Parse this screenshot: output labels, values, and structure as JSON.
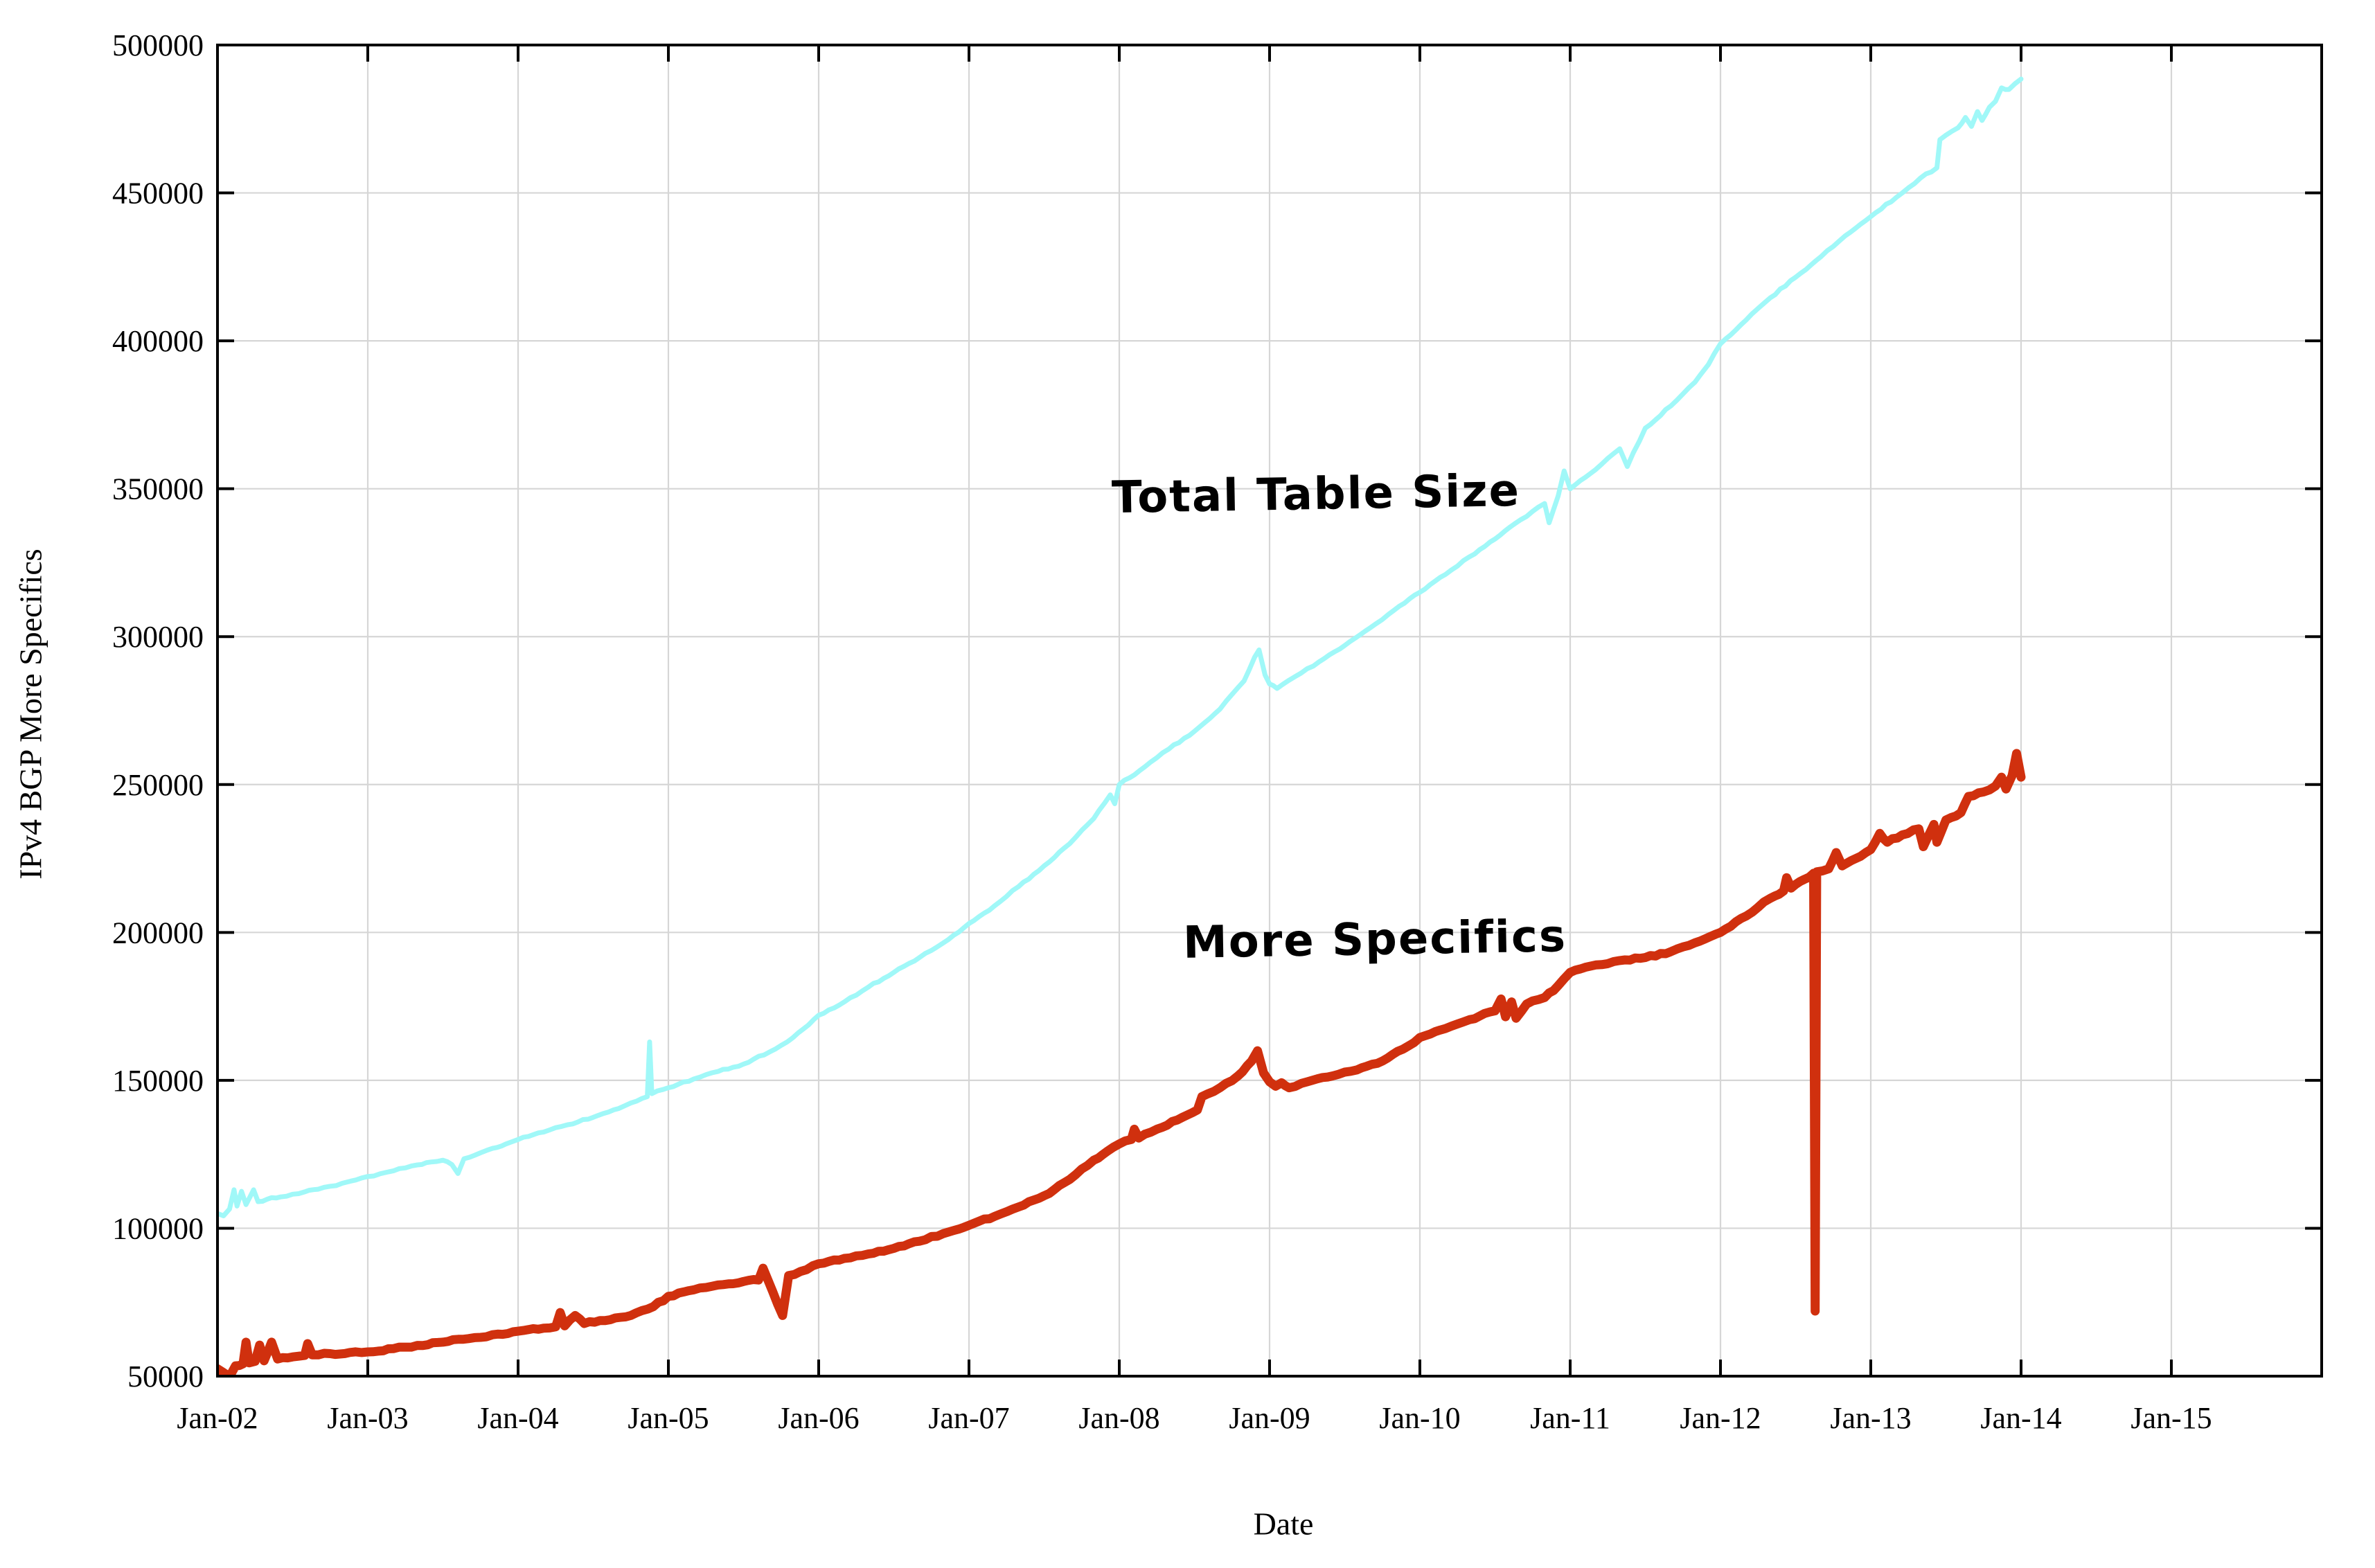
{
  "chart_data": {
    "type": "line",
    "title": "",
    "xlabel": "Date",
    "ylabel": "IPv4 BGP More Specifics",
    "grid": true,
    "legend_position": "none",
    "xlim_years": [
      2002,
      2016
    ],
    "ylim": [
      50000,
      500000
    ],
    "x_ticks": [
      {
        "year": 2002,
        "label": "Jan-02"
      },
      {
        "year": 2003,
        "label": "Jan-03"
      },
      {
        "year": 2004,
        "label": "Jan-04"
      },
      {
        "year": 2005,
        "label": "Jan-05"
      },
      {
        "year": 2006,
        "label": "Jan-06"
      },
      {
        "year": 2007,
        "label": "Jan-07"
      },
      {
        "year": 2008,
        "label": "Jan-08"
      },
      {
        "year": 2009,
        "label": "Jan-09"
      },
      {
        "year": 2010,
        "label": "Jan-10"
      },
      {
        "year": 2011,
        "label": "Jan-11"
      },
      {
        "year": 2012,
        "label": "Jan-12"
      },
      {
        "year": 2013,
        "label": "Jan-13"
      },
      {
        "year": 2014,
        "label": "Jan-14"
      },
      {
        "year": 2015,
        "label": "Jan-15"
      }
    ],
    "y_ticks": [
      {
        "value": 50000,
        "label": "50000"
      },
      {
        "value": 100000,
        "label": "100000"
      },
      {
        "value": 150000,
        "label": "150000"
      },
      {
        "value": 200000,
        "label": "200000"
      },
      {
        "value": 250000,
        "label": "250000"
      },
      {
        "value": 300000,
        "label": "300000"
      },
      {
        "value": 350000,
        "label": "350000"
      },
      {
        "value": 400000,
        "label": "400000"
      },
      {
        "value": 450000,
        "label": "450000"
      },
      {
        "value": 500000,
        "label": "500000"
      }
    ],
    "colors": {
      "total_table": "#a0f8f8",
      "more_specifics": "#d0300e",
      "grid": "#d6d6d6",
      "axis": "#000000"
    },
    "annotations": [
      {
        "text": "Total Table Size",
        "x_year": 2009.31,
        "y_value": 348000
      },
      {
        "text": "More Specifics",
        "x_year": 2009.7,
        "y_value": 197500
      }
    ],
    "series": [
      {
        "name": "Total Table Size",
        "color": "#a0f8f8",
        "width": 7,
        "jitter": 600,
        "points": [
          [
            2002.0,
            105000
          ],
          [
            2002.04,
            104200
          ],
          [
            2002.08,
            106500
          ],
          [
            2002.11,
            113000
          ],
          [
            2002.13,
            107500
          ],
          [
            2002.16,
            112500
          ],
          [
            2002.19,
            108000
          ],
          [
            2002.24,
            113000
          ],
          [
            2002.27,
            109000
          ],
          [
            2002.33,
            109800
          ],
          [
            2002.42,
            110600
          ],
          [
            2002.5,
            111500
          ],
          [
            2002.58,
            112300
          ],
          [
            2002.67,
            113200
          ],
          [
            2002.75,
            114200
          ],
          [
            2002.83,
            115200
          ],
          [
            2002.92,
            116300
          ],
          [
            2003.0,
            117500
          ],
          [
            2003.08,
            118400
          ],
          [
            2003.17,
            119400
          ],
          [
            2003.25,
            120400
          ],
          [
            2003.33,
            121400
          ],
          [
            2003.42,
            122400
          ],
          [
            2003.5,
            123000
          ],
          [
            2003.56,
            121500
          ],
          [
            2003.6,
            118500
          ],
          [
            2003.64,
            123500
          ],
          [
            2003.75,
            125500
          ],
          [
            2003.83,
            127000
          ],
          [
            2003.92,
            128500
          ],
          [
            2004.0,
            130000
          ],
          [
            2004.17,
            132500
          ],
          [
            2004.33,
            135000
          ],
          [
            2004.5,
            137500
          ],
          [
            2004.67,
            140500
          ],
          [
            2004.79,
            143000
          ],
          [
            2004.86,
            144500
          ],
          [
            2004.875,
            163000
          ],
          [
            2004.89,
            145500
          ],
          [
            2005.0,
            147500
          ],
          [
            2005.17,
            150500
          ],
          [
            2005.33,
            153000
          ],
          [
            2005.5,
            155500
          ],
          [
            2005.67,
            159500
          ],
          [
            2005.83,
            164500
          ],
          [
            2006.0,
            172000
          ],
          [
            2006.17,
            176500
          ],
          [
            2006.33,
            181500
          ],
          [
            2006.5,
            186500
          ],
          [
            2006.67,
            191500
          ],
          [
            2006.83,
            196500
          ],
          [
            2007.0,
            203000
          ],
          [
            2007.17,
            209000
          ],
          [
            2007.33,
            215500
          ],
          [
            2007.5,
            222500
          ],
          [
            2007.67,
            230000
          ],
          [
            2007.83,
            238500
          ],
          [
            2007.94,
            246500
          ],
          [
            2007.97,
            243500
          ],
          [
            2008.0,
            250000
          ],
          [
            2008.17,
            256000
          ],
          [
            2008.33,
            262000
          ],
          [
            2008.5,
            268000
          ],
          [
            2008.67,
            275500
          ],
          [
            2008.83,
            285000
          ],
          [
            2008.9,
            293000
          ],
          [
            2008.93,
            295500
          ],
          [
            2008.97,
            287000
          ],
          [
            2009.0,
            284000
          ],
          [
            2009.05,
            282500
          ],
          [
            2009.17,
            286500
          ],
          [
            2009.33,
            291500
          ],
          [
            2009.5,
            297000
          ],
          [
            2009.67,
            303000
          ],
          [
            2009.83,
            309000
          ],
          [
            2010.0,
            315000
          ],
          [
            2010.17,
            321000
          ],
          [
            2010.33,
            327000
          ],
          [
            2010.5,
            333000
          ],
          [
            2010.67,
            339500
          ],
          [
            2010.83,
            345000
          ],
          [
            2010.86,
            338500
          ],
          [
            2010.92,
            347500
          ],
          [
            2010.96,
            356000
          ],
          [
            2011.0,
            350000
          ],
          [
            2011.17,
            356500
          ],
          [
            2011.33,
            363500
          ],
          [
            2011.38,
            357500
          ],
          [
            2011.5,
            370500
          ],
          [
            2011.67,
            378000
          ],
          [
            2011.83,
            386000
          ],
          [
            2011.92,
            392000
          ],
          [
            2012.0,
            399000
          ],
          [
            2012.17,
            407000
          ],
          [
            2012.33,
            414500
          ],
          [
            2012.5,
            421500
          ],
          [
            2012.67,
            428500
          ],
          [
            2012.83,
            435500
          ],
          [
            2013.0,
            442000
          ],
          [
            2013.17,
            448500
          ],
          [
            2013.33,
            455000
          ],
          [
            2013.44,
            458500
          ],
          [
            2013.46,
            468000
          ],
          [
            2013.58,
            472000
          ],
          [
            2013.63,
            475500
          ],
          [
            2013.67,
            472500
          ],
          [
            2013.71,
            477500
          ],
          [
            2013.74,
            474500
          ],
          [
            2013.79,
            479000
          ],
          [
            2013.83,
            481000
          ],
          [
            2013.87,
            485500
          ],
          [
            2013.92,
            485000
          ],
          [
            2014.0,
            488500
          ]
        ]
      },
      {
        "name": "More Specifics",
        "color": "#d0300e",
        "width": 13,
        "jitter": 700,
        "points": [
          [
            2002.0,
            52500
          ],
          [
            2002.04,
            51200
          ],
          [
            2002.08,
            49800
          ],
          [
            2002.12,
            53500
          ],
          [
            2002.17,
            54200
          ],
          [
            2002.19,
            61500
          ],
          [
            2002.21,
            54500
          ],
          [
            2002.25,
            55000
          ],
          [
            2002.28,
            60500
          ],
          [
            2002.31,
            55200
          ],
          [
            2002.36,
            61500
          ],
          [
            2002.4,
            55800
          ],
          [
            2002.5,
            56500
          ],
          [
            2002.58,
            57000
          ],
          [
            2002.6,
            61000
          ],
          [
            2002.63,
            57200
          ],
          [
            2002.75,
            57600
          ],
          [
            2002.88,
            58000
          ],
          [
            2003.0,
            58200
          ],
          [
            2003.17,
            59300
          ],
          [
            2003.33,
            60400
          ],
          [
            2003.5,
            61500
          ],
          [
            2003.67,
            62700
          ],
          [
            2003.83,
            64000
          ],
          [
            2004.0,
            65200
          ],
          [
            2004.17,
            66200
          ],
          [
            2004.25,
            66700
          ],
          [
            2004.28,
            71500
          ],
          [
            2004.31,
            67000
          ],
          [
            2004.38,
            70500
          ],
          [
            2004.44,
            67800
          ],
          [
            2004.58,
            68800
          ],
          [
            2004.75,
            70500
          ],
          [
            2004.9,
            73500
          ],
          [
            2005.0,
            77000
          ],
          [
            2005.17,
            79200
          ],
          [
            2005.33,
            80800
          ],
          [
            2005.5,
            82000
          ],
          [
            2005.6,
            82500
          ],
          [
            2005.63,
            86500
          ],
          [
            2005.66,
            82800
          ],
          [
            2005.76,
            70500
          ],
          [
            2005.8,
            84000
          ],
          [
            2005.92,
            86000
          ],
          [
            2006.0,
            88000
          ],
          [
            2006.17,
            89800
          ],
          [
            2006.33,
            91300
          ],
          [
            2006.5,
            93200
          ],
          [
            2006.67,
            95600
          ],
          [
            2006.83,
            98200
          ],
          [
            2007.0,
            101000
          ],
          [
            2007.17,
            104000
          ],
          [
            2007.33,
            107200
          ],
          [
            2007.5,
            111000
          ],
          [
            2007.67,
            116500
          ],
          [
            2007.83,
            123000
          ],
          [
            2007.92,
            126000
          ],
          [
            2008.0,
            128500
          ],
          [
            2008.08,
            130000
          ],
          [
            2008.1,
            133500
          ],
          [
            2008.13,
            130500
          ],
          [
            2008.25,
            133500
          ],
          [
            2008.42,
            137500
          ],
          [
            2008.52,
            140000
          ],
          [
            2008.55,
            144500
          ],
          [
            2008.67,
            147500
          ],
          [
            2008.79,
            151500
          ],
          [
            2008.88,
            156500
          ],
          [
            2008.92,
            160000
          ],
          [
            2008.96,
            152500
          ],
          [
            2009.0,
            149500
          ],
          [
            2009.04,
            148000
          ],
          [
            2009.08,
            149200
          ],
          [
            2009.13,
            147500
          ],
          [
            2009.25,
            149500
          ],
          [
            2009.42,
            151500
          ],
          [
            2009.58,
            153500
          ],
          [
            2009.75,
            156500
          ],
          [
            2009.92,
            161500
          ],
          [
            2010.0,
            164500
          ],
          [
            2010.17,
            167500
          ],
          [
            2010.33,
            170500
          ],
          [
            2010.5,
            173500
          ],
          [
            2010.54,
            177500
          ],
          [
            2010.57,
            171500
          ],
          [
            2010.61,
            176500
          ],
          [
            2010.64,
            171000
          ],
          [
            2010.71,
            175800
          ],
          [
            2010.83,
            178000
          ],
          [
            2010.92,
            182000
          ],
          [
            2011.0,
            186500
          ],
          [
            2011.17,
            189000
          ],
          [
            2011.33,
            190500
          ],
          [
            2011.5,
            191500
          ],
          [
            2011.67,
            193500
          ],
          [
            2011.83,
            196500
          ],
          [
            2012.0,
            200000
          ],
          [
            2012.17,
            205500
          ],
          [
            2012.33,
            211500
          ],
          [
            2012.42,
            214000
          ],
          [
            2012.44,
            218500
          ],
          [
            2012.47,
            215000
          ],
          [
            2012.56,
            218000
          ],
          [
            2012.62,
            220000
          ],
          [
            2012.63,
            72000
          ],
          [
            2012.64,
            220500
          ],
          [
            2012.72,
            221500
          ],
          [
            2012.77,
            227000
          ],
          [
            2012.81,
            222500
          ],
          [
            2012.9,
            225000
          ],
          [
            2013.0,
            228000
          ],
          [
            2013.06,
            233500
          ],
          [
            2013.11,
            230500
          ],
          [
            2013.21,
            233000
          ],
          [
            2013.32,
            235000
          ],
          [
            2013.35,
            229000
          ],
          [
            2013.42,
            236500
          ],
          [
            2013.44,
            230500
          ],
          [
            2013.5,
            238000
          ],
          [
            2013.6,
            240500
          ],
          [
            2013.65,
            246000
          ],
          [
            2013.75,
            247500
          ],
          [
            2013.83,
            249500
          ],
          [
            2013.87,
            252500
          ],
          [
            2013.9,
            248500
          ],
          [
            2013.94,
            253000
          ],
          [
            2013.97,
            260500
          ],
          [
            2014.0,
            252500
          ]
        ]
      }
    ]
  }
}
